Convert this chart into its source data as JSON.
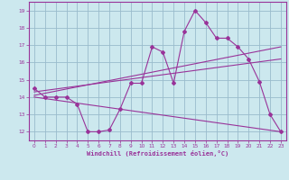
{
  "xlabel": "Windchill (Refroidissement éolien,°C)",
  "background_color": "#cce8ee",
  "line_color": "#993399",
  "grid_color": "#99bbcc",
  "xlim": [
    -0.5,
    23.5
  ],
  "ylim": [
    11.5,
    19.5
  ],
  "yticks": [
    12,
    13,
    14,
    15,
    16,
    17,
    18,
    19
  ],
  "xticks": [
    0,
    1,
    2,
    3,
    4,
    5,
    6,
    7,
    8,
    9,
    10,
    11,
    12,
    13,
    14,
    15,
    16,
    17,
    18,
    19,
    20,
    21,
    22,
    23
  ],
  "series1_x": [
    0,
    1,
    2,
    3,
    4,
    5,
    6,
    7,
    8,
    9,
    10,
    11,
    12,
    13,
    14,
    15,
    16,
    17,
    18,
    19,
    20,
    21,
    22,
    23
  ],
  "series1_y": [
    14.5,
    14.0,
    14.0,
    14.0,
    13.6,
    12.0,
    12.0,
    12.1,
    13.3,
    14.8,
    14.8,
    16.9,
    16.6,
    14.8,
    17.8,
    19.0,
    18.3,
    17.4,
    17.4,
    16.9,
    16.2,
    14.9,
    13.0,
    12.0
  ],
  "series2_x": [
    0,
    23
  ],
  "series2_y": [
    14.1,
    16.9
  ],
  "series3_x": [
    0,
    23
  ],
  "series3_y": [
    14.3,
    16.2
  ],
  "series4_x": [
    0,
    23
  ],
  "series4_y": [
    14.0,
    12.0
  ]
}
